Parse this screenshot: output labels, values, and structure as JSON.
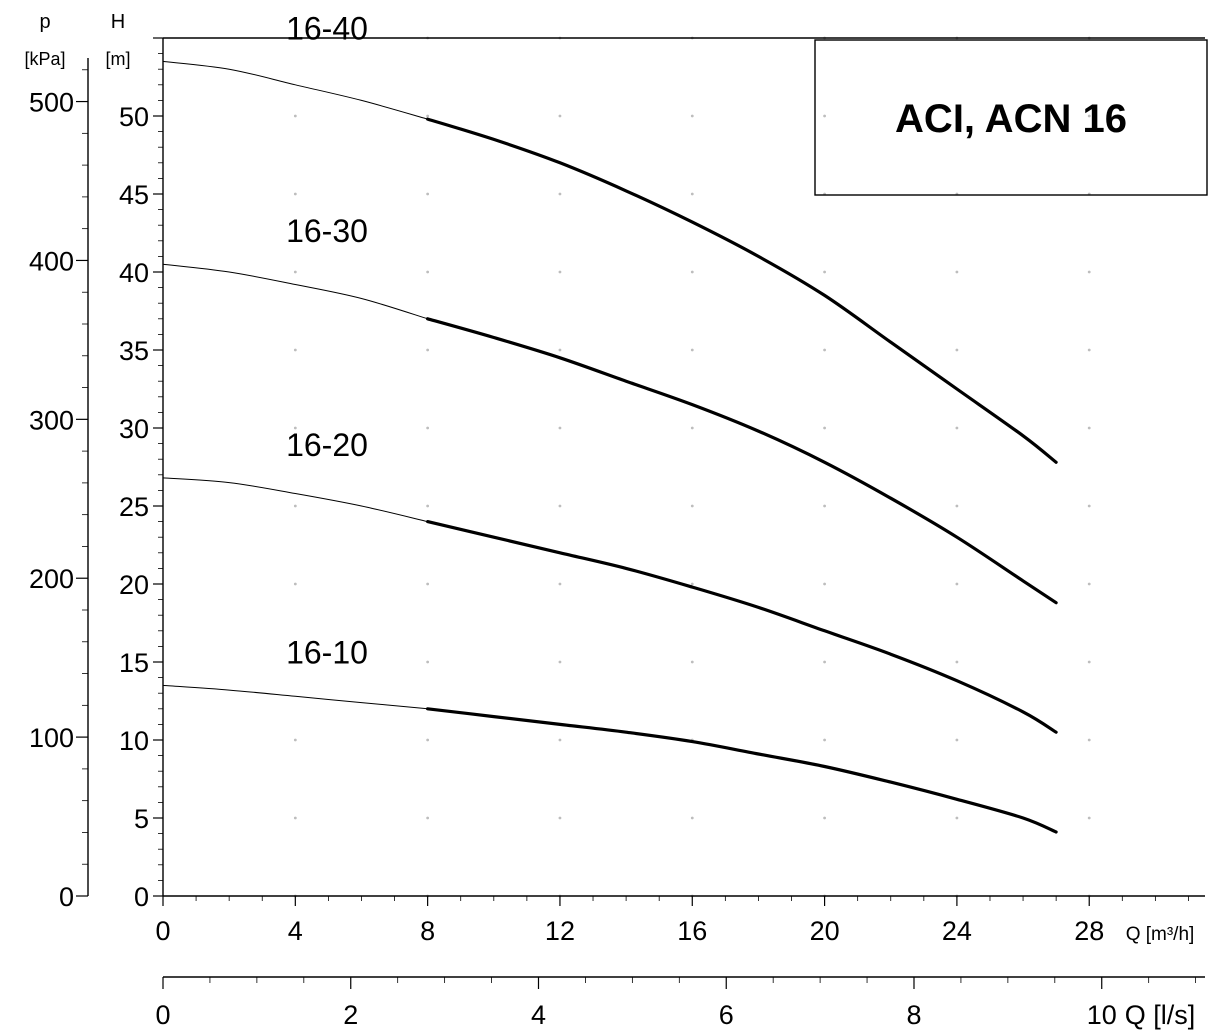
{
  "chart_data": {
    "type": "line",
    "title": "ACI, ACN 16",
    "h_axis": {
      "symbol": "H",
      "unit": "[m]",
      "range": [
        0,
        55
      ],
      "ticks": [
        0,
        5,
        10,
        15,
        20,
        25,
        30,
        35,
        40,
        45,
        50
      ]
    },
    "p_axis": {
      "symbol": "p",
      "unit": "[kPa]",
      "range": [
        0,
        540
      ],
      "ticks": [
        0,
        100,
        200,
        300,
        400,
        500
      ]
    },
    "q_m3h_axis": {
      "label": "Q [m³/h]",
      "range": [
        0,
        31.5
      ],
      "ticks": [
        0,
        4,
        8,
        12,
        16,
        20,
        24,
        28
      ]
    },
    "q_ls_axis": {
      "label": "Q [l/s]",
      "range": [
        0,
        11.1
      ],
      "ticks": [
        0,
        2,
        4,
        6,
        8,
        10
      ]
    },
    "grid": "dotted",
    "recommended_range_start_q": 8,
    "series": [
      {
        "name": "16-40",
        "x": [
          0,
          2,
          4,
          6,
          8,
          10,
          12,
          14,
          16,
          18,
          20,
          22,
          24,
          26,
          27
        ],
        "y": [
          53.5,
          53.0,
          52.0,
          51.0,
          49.8,
          48.5,
          47.0,
          45.2,
          43.2,
          41.0,
          38.5,
          35.5,
          32.5,
          29.5,
          27.8
        ]
      },
      {
        "name": "16-30",
        "x": [
          0,
          2,
          4,
          6,
          8,
          10,
          12,
          14,
          16,
          18,
          20,
          22,
          24,
          26,
          27
        ],
        "y": [
          40.5,
          40.0,
          39.2,
          38.3,
          37.0,
          35.8,
          34.5,
          33.0,
          31.5,
          29.8,
          27.8,
          25.5,
          23.0,
          20.2,
          18.8
        ]
      },
      {
        "name": "16-20",
        "x": [
          0,
          2,
          4,
          6,
          8,
          10,
          12,
          14,
          16,
          18,
          20,
          22,
          24,
          26,
          27
        ],
        "y": [
          26.8,
          26.5,
          25.8,
          25.0,
          24.0,
          23.0,
          22.0,
          21.0,
          19.8,
          18.5,
          17.0,
          15.5,
          13.8,
          11.8,
          10.5
        ]
      },
      {
        "name": "16-10",
        "x": [
          0,
          2,
          4,
          6,
          8,
          10,
          12,
          14,
          16,
          18,
          20,
          22,
          24,
          26,
          27
        ],
        "y": [
          13.5,
          13.2,
          12.8,
          12.4,
          12.0,
          11.5,
          11.0,
          10.5,
          9.9,
          9.1,
          8.3,
          7.3,
          6.2,
          5.0,
          4.1
        ]
      }
    ]
  }
}
